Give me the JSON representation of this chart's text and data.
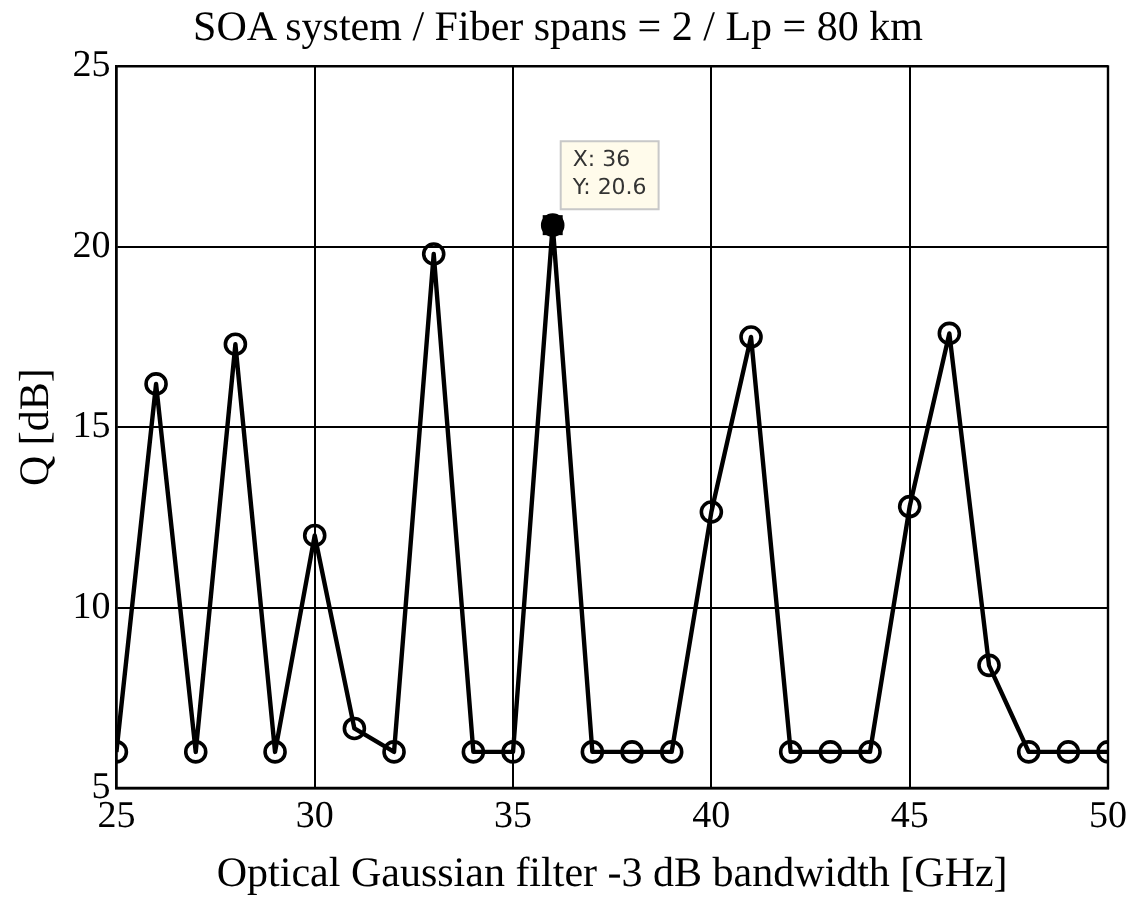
{
  "chart_data": {
    "type": "line",
    "title": "SOA system / Fiber spans = 2 / Lp = 80 km",
    "xlabel": "Optical Gaussian filter -3 dB bandwidth [GHz]",
    "ylabel": "Q [dB]",
    "x": [
      25,
      26,
      27,
      28,
      29,
      30,
      31,
      32,
      33,
      34,
      35,
      36,
      37,
      38,
      39,
      40,
      41,
      42,
      43,
      44,
      45,
      46,
      47,
      48,
      49,
      50
    ],
    "series": [
      {
        "color": "#000000",
        "values": [
          6,
          16.2,
          6,
          17.3,
          6,
          12,
          6.65,
          6,
          19.8,
          6,
          6,
          20.6,
          6,
          6,
          6,
          12.65,
          17.5,
          6,
          6,
          6,
          12.8,
          17.6,
          8.4,
          6,
          6,
          6
        ]
      }
    ],
    "xlim": [
      25,
      50
    ],
    "xticks": [
      25,
      30,
      35,
      40,
      45,
      50
    ],
    "ylim": [
      5,
      25
    ],
    "yticks": [
      5,
      10,
      15,
      20,
      25
    ],
    "grid": true,
    "legend": false,
    "marker": "circle",
    "line_style": "solid",
    "annotations": [
      {
        "text": "X: 36\nY: 20.6",
        "x": 36,
        "y": 20.6
      }
    ]
  }
}
